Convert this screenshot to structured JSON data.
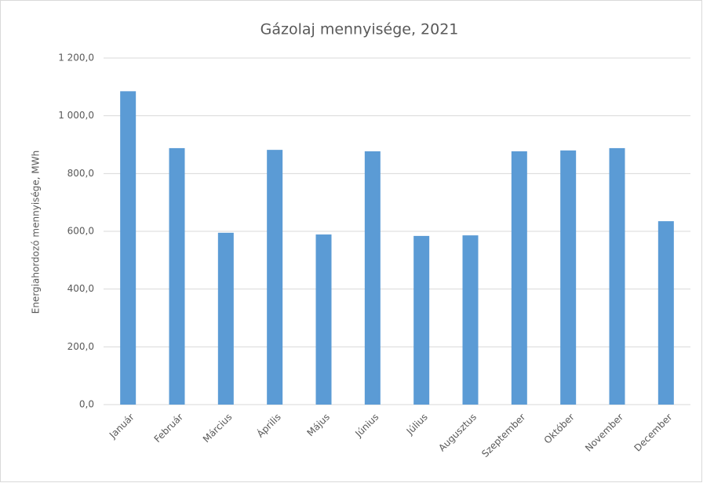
{
  "chart_data": {
    "type": "bar",
    "title": "Gázolaj mennyisége, 2021",
    "ylabel": "Energiahordozó mennyisége, MWh",
    "categories": [
      "Január",
      "Február",
      "Március",
      "Április",
      "Május",
      "Június",
      "Július",
      "Augusztus",
      "Szeptember",
      "Október",
      "November",
      "December"
    ],
    "values": [
      1085,
      888,
      595,
      882,
      589,
      877,
      584,
      586,
      877,
      880,
      888,
      635
    ],
    "color": "#5b9bd5",
    "ylim": [
      0,
      1200
    ],
    "yticks": [
      {
        "value": 0,
        "label": "0,0"
      },
      {
        "value": 200,
        "label": "200,0"
      },
      {
        "value": 400,
        "label": "400,0"
      },
      {
        "value": 600,
        "label": "600,0"
      },
      {
        "value": 800,
        "label": "800,0"
      },
      {
        "value": 1000,
        "label": "1 000,0"
      },
      {
        "value": 1200,
        "label": "1 200,0"
      }
    ],
    "grid": true
  }
}
